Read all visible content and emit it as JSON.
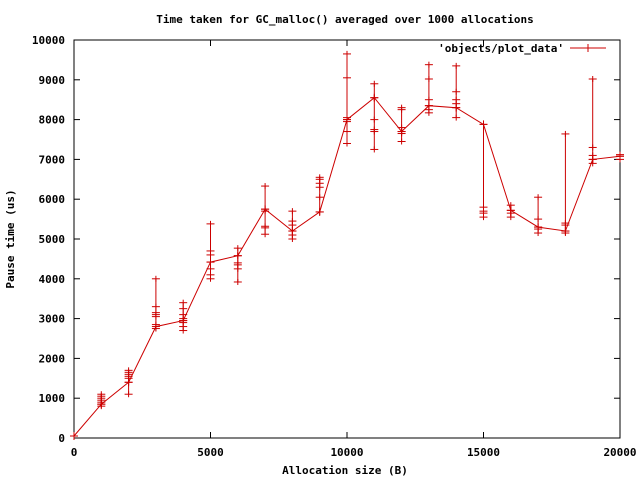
{
  "chart_data": {
    "type": "line",
    "title": "Time taken for GC_malloc() averaged over 1000 allocations",
    "xlabel": "Allocation size (B)",
    "ylabel": "Pause time (us)",
    "xlim": [
      0,
      20000
    ],
    "ylim": [
      0,
      10000
    ],
    "xticks": [
      "0",
      "5000",
      "10000",
      "15000",
      "20000"
    ],
    "yticks": [
      "0",
      "1000",
      "2000",
      "3000",
      "4000",
      "5000",
      "6000",
      "7000",
      "8000",
      "9000",
      "10000"
    ],
    "grid": false,
    "legend_position": "top-right",
    "series": [
      {
        "name": "'objects/plot_data'",
        "color": "#cc0000",
        "marker": "plus",
        "x": [
          0,
          1000,
          2000,
          3000,
          4000,
          5000,
          6000,
          7000,
          8000,
          9000,
          10000,
          11000,
          12000,
          13000,
          14000,
          15000,
          16000,
          17000,
          18000,
          19000,
          20000
        ],
        "y": [
          50,
          850,
          1400,
          2800,
          2950,
          4420,
          4580,
          5750,
          5200,
          5680,
          8000,
          8550,
          7700,
          8350,
          8300,
          7880,
          5720,
          5300,
          5200,
          7000,
          7080
        ],
        "spread": [
          {
            "x": 1000,
            "min": 800,
            "max": 1100,
            "points": [
              800,
              850,
              900,
              950,
              1000,
              1050,
              1100
            ]
          },
          {
            "x": 2000,
            "min": 1100,
            "max": 1700,
            "points": [
              1100,
              1400,
              1500,
              1550,
              1600,
              1650,
              1700
            ]
          },
          {
            "x": 3000,
            "min": 2750,
            "max": 4000,
            "points": [
              2750,
              2850,
              3050,
              3100,
              3150,
              3300,
              4000
            ]
          },
          {
            "x": 4000,
            "min": 2700,
            "max": 3400,
            "points": [
              2700,
              2800,
              2900,
              2950,
              3000,
              3100,
              3250,
              3400
            ]
          },
          {
            "x": 5000,
            "min": 4000,
            "max": 5380,
            "points": [
              4000,
              4100,
              4250,
              4420,
              4600,
              4700,
              5380
            ]
          },
          {
            "x": 6000,
            "min": 3920,
            "max": 4770,
            "points": [
              3920,
              4250,
              4350,
              4400,
              4580,
              4770
            ]
          },
          {
            "x": 7000,
            "min": 5120,
            "max": 6330,
            "points": [
              5120,
              5280,
              5320,
              5700,
              5750,
              6330
            ]
          },
          {
            "x": 8000,
            "min": 5000,
            "max": 5700,
            "points": [
              5000,
              5100,
              5200,
              5350,
              5450,
              5700
            ]
          },
          {
            "x": 9000,
            "min": 5680,
            "max": 6550,
            "points": [
              5680,
              6050,
              6300,
              6400,
              6500,
              6550
            ]
          },
          {
            "x": 10000,
            "min": 7400,
            "max": 9650,
            "points": [
              7400,
              7700,
              7950,
              8000,
              8050,
              9050,
              9650
            ]
          },
          {
            "x": 11000,
            "min": 7250,
            "max": 8900,
            "points": [
              7250,
              7700,
              7750,
              8000,
              8550,
              8900
            ]
          },
          {
            "x": 12000,
            "min": 7450,
            "max": 8300,
            "points": [
              7450,
              7650,
              7700,
              7800,
              8250,
              8300
            ]
          },
          {
            "x": 13000,
            "min": 8170,
            "max": 9380,
            "points": [
              8170,
              8250,
              8350,
              8500,
              9020,
              9380
            ]
          },
          {
            "x": 14000,
            "min": 8050,
            "max": 9350,
            "points": [
              8050,
              8300,
              8400,
              8500,
              8700,
              9350
            ]
          },
          {
            "x": 15000,
            "min": 5550,
            "max": 7880,
            "points": [
              5550,
              5650,
              5700,
              5800,
              7880
            ]
          },
          {
            "x": 16000,
            "min": 5550,
            "max": 5850,
            "points": [
              5550,
              5650,
              5720,
              5850
            ]
          },
          {
            "x": 17000,
            "min": 5150,
            "max": 6050,
            "points": [
              5150,
              5250,
              5300,
              5500,
              6050
            ]
          },
          {
            "x": 18000,
            "min": 5150,
            "max": 7640,
            "points": [
              5150,
              5200,
              5350,
              5400,
              7640
            ]
          },
          {
            "x": 19000,
            "min": 6900,
            "max": 9020,
            "points": [
              6900,
              7000,
              7100,
              7300,
              9020
            ]
          },
          {
            "x": 20000,
            "min": 7000,
            "max": 7120,
            "points": [
              7000,
              7080,
              7120
            ]
          }
        ]
      }
    ]
  }
}
